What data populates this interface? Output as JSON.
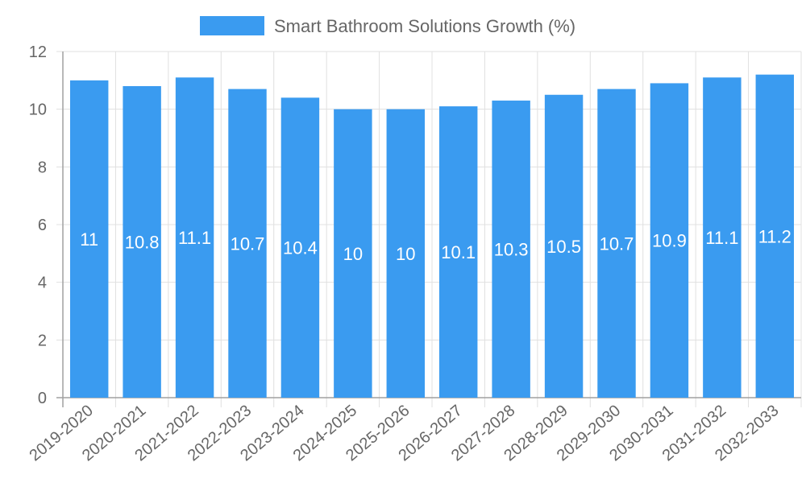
{
  "chart_data": {
    "type": "bar",
    "categories": [
      "2019-2020",
      "2020-2021",
      "2021-2022",
      "2022-2023",
      "2023-2024",
      "2024-2025",
      "2025-2026",
      "2026-2027",
      "2027-2028",
      "2028-2029",
      "2029-2030",
      "2030-2031",
      "2031-2032",
      "2032-2033"
    ],
    "series": [
      {
        "name": "Smart Bathroom Solutions Growth (%)",
        "values": [
          11,
          10.8,
          11.1,
          10.7,
          10.4,
          10,
          10,
          10.1,
          10.3,
          10.5,
          10.7,
          10.9,
          11.1,
          11.2
        ],
        "color": "#3a9bf0"
      }
    ],
    "data_labels": [
      "11",
      "10.8",
      "11.1",
      "10.7",
      "10.4",
      "10",
      "10",
      "10.1",
      "10.3",
      "10.5",
      "10.7",
      "10.9",
      "11.1",
      "11.2"
    ],
    "y_ticks": [
      "0",
      "2",
      "4",
      "6",
      "8",
      "10",
      "12"
    ],
    "ylim": [
      0,
      12
    ],
    "grid": true,
    "legend_position": "top-center",
    "xlabel": "",
    "ylabel": "",
    "title": ""
  }
}
